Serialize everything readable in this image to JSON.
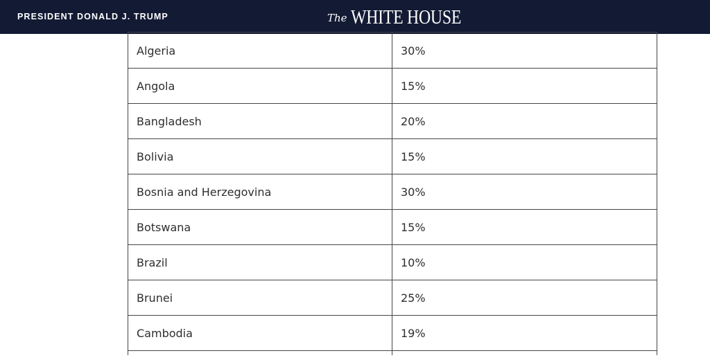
{
  "header": {
    "president_link": "PRESIDENT DONALD J. TRUMP",
    "logo_prefix": "The",
    "logo_main": "WHITE HOUSE",
    "background_color": "#131a34"
  },
  "table": {
    "rows": [
      {
        "country": "Algeria",
        "rate": "30%"
      },
      {
        "country": "Angola",
        "rate": "15%"
      },
      {
        "country": "Bangladesh",
        "rate": "20%"
      },
      {
        "country": "Bolivia",
        "rate": "15%"
      },
      {
        "country": "Bosnia and Herzegovina",
        "rate": "30%"
      },
      {
        "country": "Botswana",
        "rate": "15%"
      },
      {
        "country": "Brazil",
        "rate": "10%"
      },
      {
        "country": "Brunei",
        "rate": "25%"
      },
      {
        "country": "Cambodia",
        "rate": "19%"
      }
    ]
  }
}
